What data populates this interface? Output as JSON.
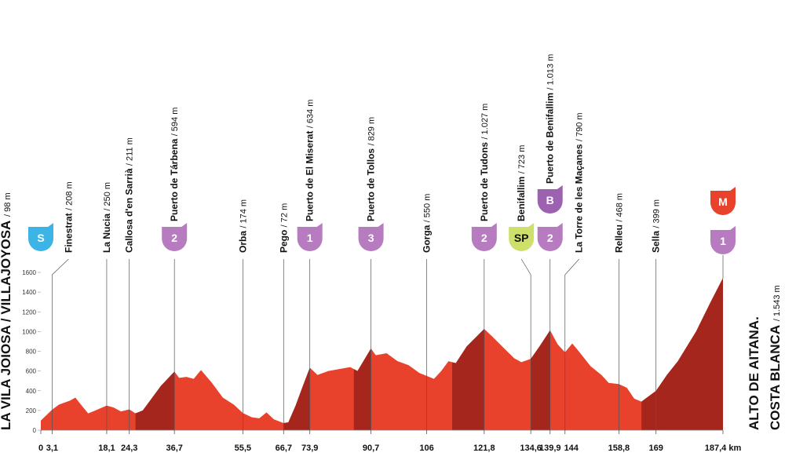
{
  "chart_data": {
    "type": "area",
    "color": "#e8412c",
    "climb_color": "#a5261c",
    "xlim": [
      0,
      187.4
    ],
    "ylim": [
      0,
      1600
    ],
    "yticks": [
      0,
      200,
      400,
      600,
      800,
      1000,
      1200,
      1400,
      1600
    ],
    "xticks": [
      0,
      {
        "value": 3.1,
        "label": "3,1"
      },
      {
        "value": 18.1,
        "label": "18,1"
      },
      {
        "value": 24.3,
        "label": "24,3"
      },
      {
        "value": 36.7,
        "label": "36,7"
      },
      {
        "value": 55.5,
        "label": "55,5"
      },
      {
        "value": 66.7,
        "label": "66,7"
      },
      {
        "value": 73.9,
        "label": "73,9"
      },
      {
        "value": 90.7,
        "label": "90,7"
      },
      106,
      {
        "value": 121.8,
        "label": "121,8"
      },
      {
        "value": 134.6,
        "label": "134,6"
      },
      {
        "value": 139.9,
        "label": "139,9"
      },
      144,
      {
        "value": 158.8,
        "label": "158,8"
      },
      169,
      {
        "value": 187.4,
        "label": "187,4 km"
      }
    ],
    "x": [
      0,
      3.1,
      5,
      8,
      9.5,
      11,
      13,
      15,
      18.1,
      20,
      22,
      24.3,
      26,
      28,
      30,
      33,
      36.7,
      38,
      40,
      42,
      44,
      47,
      50,
      53,
      55.5,
      58,
      60,
      62,
      64,
      66.7,
      68,
      70,
      72,
      73.9,
      76,
      79,
      82,
      85,
      87,
      90.7,
      92,
      95,
      98,
      101,
      104,
      106,
      108,
      110,
      112,
      114,
      117,
      121.8,
      124,
      127,
      130,
      132,
      134.6,
      137,
      139.9,
      142,
      144,
      146,
      148,
      151,
      154,
      156,
      158.8,
      161,
      163,
      165,
      169,
      172,
      175,
      180,
      184,
      187.4
    ],
    "values": [
      98,
      208,
      260,
      300,
      330,
      260,
      170,
      200,
      250,
      230,
      190,
      211,
      170,
      200,
      300,
      450,
      594,
      530,
      540,
      520,
      610,
      480,
      330,
      260,
      174,
      130,
      120,
      180,
      110,
      72,
      80,
      250,
      450,
      634,
      560,
      600,
      620,
      640,
      600,
      829,
      760,
      780,
      700,
      660,
      580,
      550,
      520,
      600,
      700,
      680,
      850,
      1027,
      950,
      840,
      730,
      690,
      723,
      850,
      1013,
      870,
      790,
      880,
      790,
      650,
      560,
      480,
      468,
      430,
      320,
      290,
      399,
      560,
      700,
      1000,
      1300,
      1543
    ],
    "climbs": [
      [
        26,
        36.7
      ],
      [
        66.7,
        73.9
      ],
      [
        86,
        90.7
      ],
      [
        113,
        121.8
      ],
      [
        134.6,
        139.9
      ],
      [
        165,
        187.4
      ]
    ],
    "start": {
      "name": "LA VILA JOIOSA / VILLAJOYOSA",
      "altitude": "/ 98 m",
      "badge": {
        "text": "S",
        "color": "#3cb4e6"
      }
    },
    "finish": {
      "name": [
        "ALTO DE AITANA.",
        "COSTA BLANCA"
      ],
      "altitude": "/ 1.543 m",
      "badges": [
        {
          "text": "1",
          "color": "#b67cbf"
        },
        {
          "text": "M",
          "color": "#e8412c"
        }
      ]
    },
    "waypoints": [
      {
        "name": "Finestrat",
        "altitude": "/ 208 m"
      },
      {
        "name": "La Nucia",
        "altitude": "/ 250 m"
      },
      {
        "name": "Callosa d'en Sarrià",
        "altitude": "/ 211 m"
      },
      {
        "name": "Puerto de Tárbena",
        "altitude": "/ 594 m",
        "badges": [
          {
            "text": "2",
            "color": "#b67cbf"
          }
        ]
      },
      {
        "name": "Orba",
        "altitude": "/ 174 m"
      },
      {
        "name": "Pego",
        "altitude": "/ 72 m"
      },
      {
        "name": "Puerto de El Miserat",
        "altitude": "/ 634 m",
        "badges": [
          {
            "text": "1",
            "color": "#b67cbf"
          }
        ]
      },
      {
        "name": "Puerto de Tollos",
        "altitude": "/ 829 m",
        "badges": [
          {
            "text": "3",
            "color": "#b67cbf"
          }
        ]
      },
      {
        "name": "Gorga",
        "altitude": "/ 550 m"
      },
      {
        "name": "Puerto de Tudons",
        "altitude": "/ 1.027 m",
        "badges": [
          {
            "text": "2",
            "color": "#b67cbf"
          }
        ]
      },
      {
        "name": "Benifallim",
        "altitude": "/ 723 m",
        "badges": [
          {
            "text": "SP",
            "color": "#cfdf6c"
          }
        ]
      },
      {
        "name": "Puerto de Benifallim",
        "altitude": "/ 1.013 m",
        "badges": [
          {
            "text": "2",
            "color": "#b67cbf"
          },
          {
            "text": "B",
            "color": "#9c62b0"
          }
        ]
      },
      {
        "name": "La Torre de les Maçanes",
        "altitude": "/ 790 m"
      },
      {
        "name": "Relleu",
        "altitude": "/ 468 m"
      },
      {
        "name": "Sella",
        "altitude": "/ 399 m"
      }
    ]
  }
}
